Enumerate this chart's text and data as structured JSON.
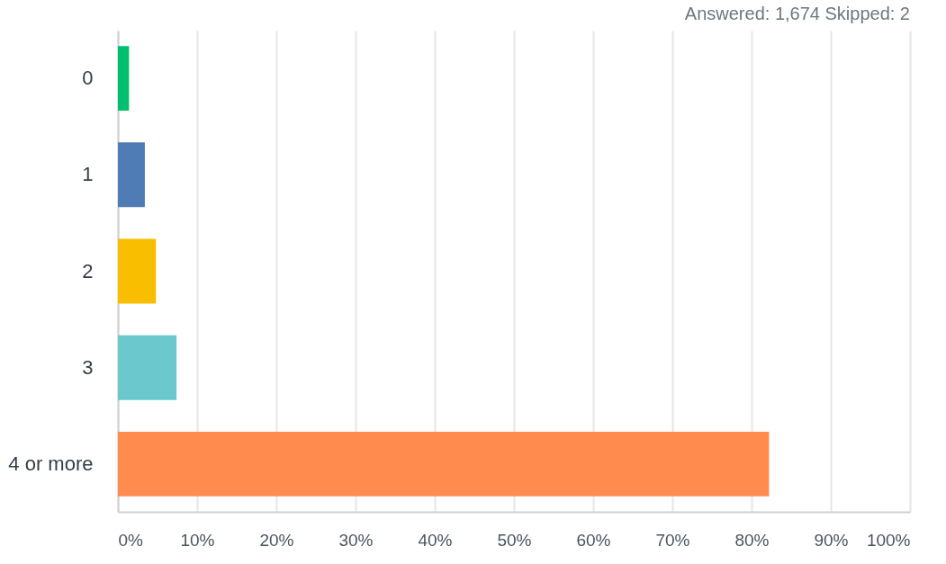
{
  "chart_data": {
    "type": "bar",
    "orientation": "horizontal",
    "title": "Answered: 1,674    Skipped: 2",
    "categories": [
      "0",
      "1",
      "2",
      "3",
      "4 or more"
    ],
    "values": [
      1.4,
      3.4,
      4.8,
      7.4,
      82.2
    ],
    "colors": [
      "#00bf6f",
      "#507cb6",
      "#f9be00",
      "#6bc8cd",
      "#ff8b4f"
    ],
    "xlim": [
      0,
      100
    ],
    "xticks": [
      {
        "value": 0,
        "label": "0%"
      },
      {
        "value": 10,
        "label": "10%"
      },
      {
        "value": 20,
        "label": "20%"
      },
      {
        "value": 30,
        "label": "30%"
      },
      {
        "value": 40,
        "label": "40%"
      },
      {
        "value": 50,
        "label": "50%"
      },
      {
        "value": 60,
        "label": "60%"
      },
      {
        "value": 70,
        "label": "70%"
      },
      {
        "value": 80,
        "label": "80%"
      },
      {
        "value": 90,
        "label": "90%"
      },
      {
        "value": 100,
        "label": "100%"
      }
    ],
    "grid": "x",
    "legend": false
  }
}
